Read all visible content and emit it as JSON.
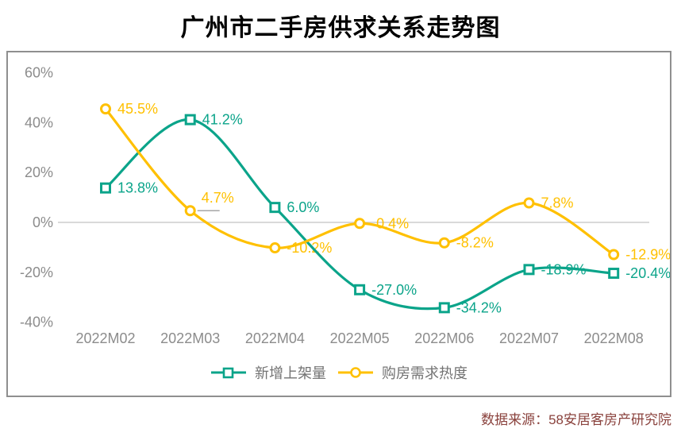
{
  "title": "广州市二手房供求关系走势图",
  "footer": {
    "source": "数据来源：58安居客房产研究院"
  },
  "colors": {
    "series_green": "#0ba48a",
    "series_yellow": "#ffc000",
    "axis_gray": "#8c8c8c",
    "zero_line": "#d9d9d9",
    "frame_border": "#8f8f8f",
    "source_text": "#8a423d",
    "legend_text": "#737373"
  },
  "chart_data": {
    "type": "line",
    "title": "广州市二手房供求关系走势图",
    "categories": [
      "2022M02",
      "2022M03",
      "2022M04",
      "2022M05",
      "2022M06",
      "2022M07",
      "2022M08"
    ],
    "y_ticks": [
      "60%",
      "40%",
      "20%",
      "0%",
      "-20%",
      "-40%"
    ],
    "y_tick_values": [
      60,
      40,
      20,
      0,
      -20,
      -40
    ],
    "ylim": [
      -48,
      68
    ],
    "grid": "zero-line-only",
    "smooth_lines": true,
    "legend_position": "bottom-center",
    "series": [
      {
        "name": "新增上架量",
        "color": "#0ba48a",
        "marker": "square",
        "values": [
          13.8,
          41.2,
          6.0,
          -27.0,
          -34.2,
          -18.9,
          -20.4
        ],
        "labels": [
          "13.8%",
          "41.2%",
          "6.0%",
          "-27.0%",
          "-34.2%",
          "-18.9%",
          "-20.4%"
        ]
      },
      {
        "name": "购房需求热度",
        "color": "#ffc000",
        "marker": "circle",
        "values": [
          45.5,
          4.7,
          -10.2,
          -0.4,
          -8.2,
          7.8,
          -12.9
        ],
        "labels": [
          "45.5%",
          "4.7%",
          "-10.2%",
          "-0.4%",
          "-8.2%",
          "7.8%",
          "-12.9%"
        ]
      }
    ]
  }
}
